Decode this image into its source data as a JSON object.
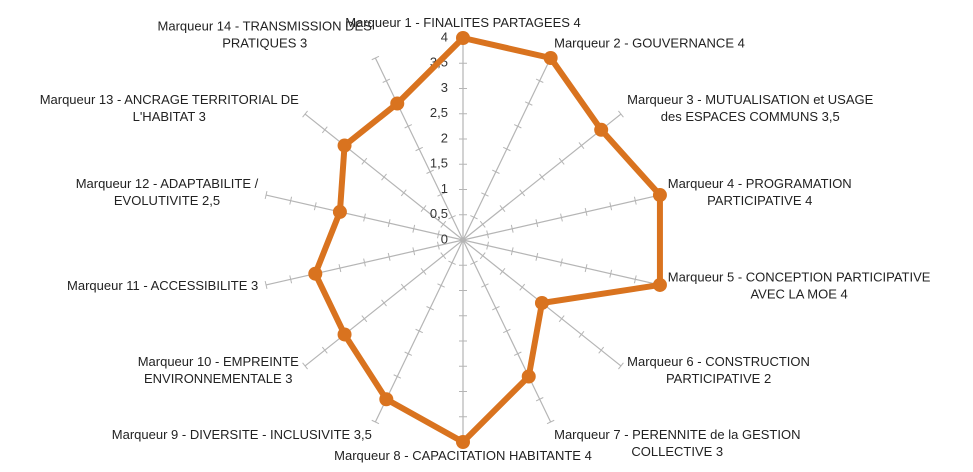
{
  "chart_data": {
    "type": "radar",
    "categories": [
      [
        "Marqueur 1 - FINALITES PARTAGEES 4"
      ],
      [
        "Marqueur 2 - GOUVERNANCE 4"
      ],
      [
        "Marqueur 3 - MUTUALISATION et USAGE",
        "des ESPACES COMMUNS 3,5"
      ],
      [
        "Marqueur 4 - PROGRAMATION",
        "PARTICIPATIVE 4"
      ],
      [
        "Marqueur 5 - CONCEPTION PARTICIPATIVE",
        "AVEC LA MOE 4"
      ],
      [
        "Marqueur 6 -  CONSTRUCTION",
        "PARTICIPATIVE 2"
      ],
      [
        "Marqueur 7 - PERENNITE de la GESTION",
        "COLLECTIVE 3"
      ],
      [
        "Marqueur 8 - CAPACITATION HABITANTE 4"
      ],
      [
        "Marqueur 9 - DIVERSITE - INCLUSIVITE   3,5"
      ],
      [
        "Marqueur  10 -  EMPREINTE",
        "ENVIRONNEMENTALE 3"
      ],
      [
        "Marqueur 11 - ACCESSIBILITE 3"
      ],
      [
        "Marqueur 12 - ADAPTABILITE /",
        "EVOLUTIVITE   2,5"
      ],
      [
        "Marqueur 13 - ANCRAGE TERRITORIAL DE",
        "L'HABITAT 3"
      ],
      [
        "Marqueur 14 - TRANSMISSION DES",
        "PRATIQUES 3"
      ]
    ],
    "values": [
      4,
      4,
      3.5,
      4,
      4,
      2,
      3,
      4,
      3.5,
      3,
      3,
      2.5,
      3,
      3
    ],
    "color": "#d9731f",
    "rlim": [
      0,
      4
    ],
    "rticks": [
      0,
      {
        "value": 0.5,
        "label": "0,5"
      },
      1,
      {
        "value": 1.5,
        "label": "1,5"
      },
      2,
      {
        "value": 2.5,
        "label": "2,5"
      },
      3,
      {
        "value": 3.5,
        "label": "3,5"
      },
      4
    ]
  }
}
